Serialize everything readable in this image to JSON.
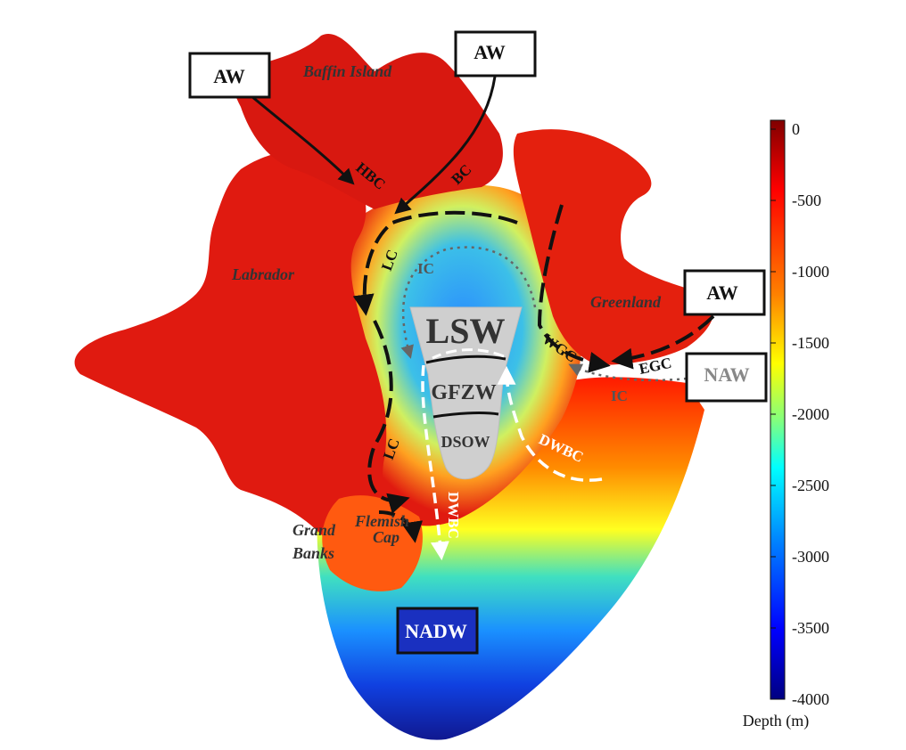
{
  "places": {
    "baffin_island": "Baffin Island",
    "labrador": "Labrador",
    "greenland": "Greenland",
    "grand": "Grand",
    "banks": "Banks",
    "flemish": "Flemish",
    "cap": "Cap"
  },
  "water_masses": {
    "aw_left": "AW",
    "aw_top": "AW",
    "aw_right": "AW",
    "naw": "NAW",
    "nadw": "NADW",
    "lsw": "LSW",
    "gfzw": "GFZW",
    "dsow": "DSOW"
  },
  "currents": {
    "hbc": "HBC",
    "bc": "BC",
    "lc_upper": "LC",
    "lc_lower": "LC",
    "ic_inner": "IC",
    "ic_outer": "IC",
    "wgc": "WGC",
    "egc": "EGC",
    "dwbc_right": "DWBC",
    "dwbc_lower": "DWBC"
  },
  "colorbar": {
    "label": "Depth (m)",
    "ticks": [
      "0",
      "-500",
      "-1000",
      "-1500",
      "-2000",
      "-2500",
      "-3000",
      "-3500",
      "-4000"
    ],
    "range": [
      0,
      -4000
    ],
    "colors": [
      "#800000",
      "#ff0000",
      "#ff8000",
      "#ffff00",
      "#80ff80",
      "#00ffff",
      "#0080ff",
      "#0000ff",
      "#000080"
    ]
  }
}
